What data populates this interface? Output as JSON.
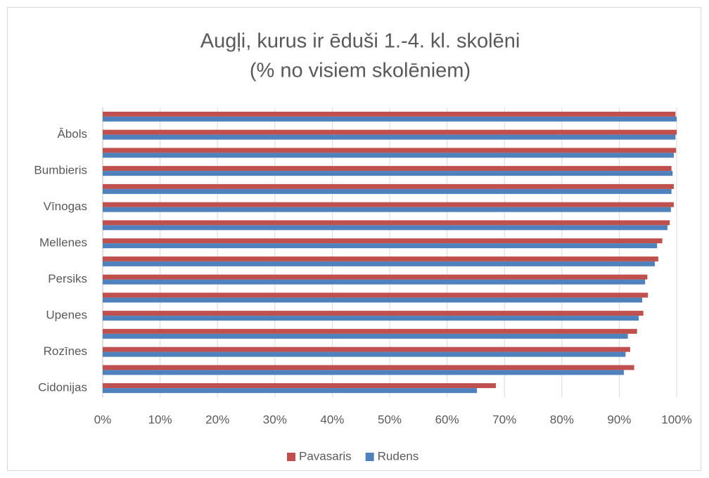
{
  "chart_data": {
    "type": "hbar",
    "title": "Augļi, kurus ir ēduši 1.-4. kl. skolēni",
    "subtitle": "(% no visiem skolēniem)",
    "categories": [
      null,
      "Ābols",
      null,
      "Bumbieris",
      null,
      "Vīnogas",
      null,
      "Mellenes",
      null,
      "Persiks",
      null,
      "Upenes",
      null,
      "Rozīnes",
      null,
      "Cidonijas"
    ],
    "series": [
      {
        "name": "Pavasaris",
        "color": "#c0504d",
        "values": [
          99.8,
          100,
          99.9,
          99.1,
          99.5,
          99.5,
          98.8,
          97.5,
          96.8,
          94.9,
          95.0,
          94.2,
          93.1,
          91.9,
          92.6,
          68.5
        ]
      },
      {
        "name": "Rudens",
        "color": "#4f81bd",
        "values": [
          100,
          99.8,
          99.5,
          99.3,
          99.1,
          99.0,
          98.4,
          96.6,
          96.2,
          94.5,
          94.0,
          93.4,
          91.5,
          91.1,
          90.8,
          65.2
        ]
      }
    ],
    "xlim": [
      0,
      100
    ],
    "xticks": [
      {
        "value": 0,
        "label": "0%"
      },
      {
        "value": 10,
        "label": "10%"
      },
      {
        "value": 20,
        "label": "20%"
      },
      {
        "value": 30,
        "label": "30%"
      },
      {
        "value": 40,
        "label": "40%"
      },
      {
        "value": 50,
        "label": "50%"
      },
      {
        "value": 60,
        "label": "60%"
      },
      {
        "value": 70,
        "label": "70%"
      },
      {
        "value": 80,
        "label": "80%"
      },
      {
        "value": 90,
        "label": "90%"
      },
      {
        "value": 100,
        "label": "100%"
      }
    ],
    "grid": true,
    "legend": "bottom"
  }
}
